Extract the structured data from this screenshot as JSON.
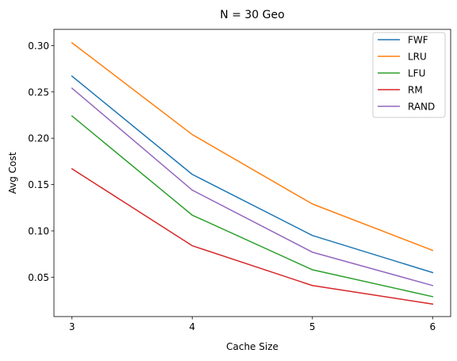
{
  "chart_data": {
    "type": "line",
    "title": "N = 30 Geo",
    "xlabel": "Cache Size",
    "ylabel": "Avg Cost",
    "x": [
      3,
      4,
      5,
      6
    ],
    "xticks": [
      "3",
      "4",
      "5",
      "6"
    ],
    "xlim": [
      2.85,
      6.15
    ],
    "ylim": [
      0.0075,
      0.3175
    ],
    "yticks": [
      "0.05",
      "0.10",
      "0.15",
      "0.20",
      "0.25",
      "0.30"
    ],
    "ytick_values": [
      0.05,
      0.1,
      0.15,
      0.2,
      0.25,
      0.3
    ],
    "grid": false,
    "legend_position": "top-right",
    "series": [
      {
        "name": "FWF",
        "color": "#1f77b4",
        "values": [
          0.267,
          0.161,
          0.095,
          0.055
        ]
      },
      {
        "name": "LRU",
        "color": "#ff7f0e",
        "values": [
          0.303,
          0.204,
          0.129,
          0.079
        ]
      },
      {
        "name": "LFU",
        "color": "#2ca02c",
        "values": [
          0.224,
          0.117,
          0.058,
          0.029
        ]
      },
      {
        "name": "RM",
        "color": "#d62728",
        "values": [
          0.167,
          0.084,
          0.041,
          0.021
        ]
      },
      {
        "name": "RAND",
        "color": "#9467bd",
        "values": [
          0.254,
          0.144,
          0.077,
          0.041
        ]
      }
    ]
  }
}
